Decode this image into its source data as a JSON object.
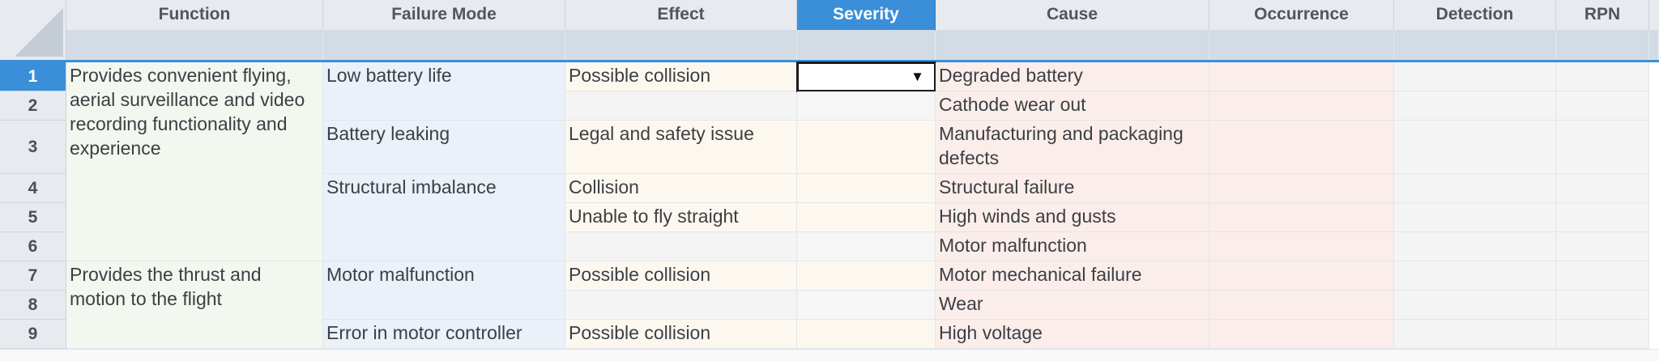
{
  "columns": [
    "Function",
    "Failure Mode",
    "Effect",
    "Severity",
    "Cause",
    "Occurrence",
    "Detection",
    "RPN"
  ],
  "row_numbers": [
    "1",
    "2",
    "3",
    "4",
    "5",
    "6",
    "7",
    "8",
    "9"
  ],
  "functions": [
    "Provides convenient flying, aerial surveillance and video recording functionality and experience",
    "Provides the thrust and motion to the flight"
  ],
  "failure_modes": [
    "Low battery life",
    "Battery leaking",
    "Structural imbalance",
    "Motor malfunction",
    "Error in motor controller"
  ],
  "effects": [
    "Possible collision",
    "Legal and safety issue",
    "Collision",
    "Unable to fly straight",
    "Possible collision",
    "Possible collision"
  ],
  "causes": [
    "Degraded battery",
    "Cathode wear out",
    "Manufacturing and packaging defects",
    "Structural failure",
    "High winds and gusts",
    "Motor malfunction",
    "Motor mechanical failure",
    "Wear",
    "High voltage"
  ],
  "severity_dropdown": {
    "value": "",
    "icon": "dropdown-arrow-icon",
    "glyph": "▼"
  },
  "colors": {
    "selection": "#3a8fd8",
    "header_bg": "#e7ebf0",
    "filter_bg": "#d3dce5"
  }
}
